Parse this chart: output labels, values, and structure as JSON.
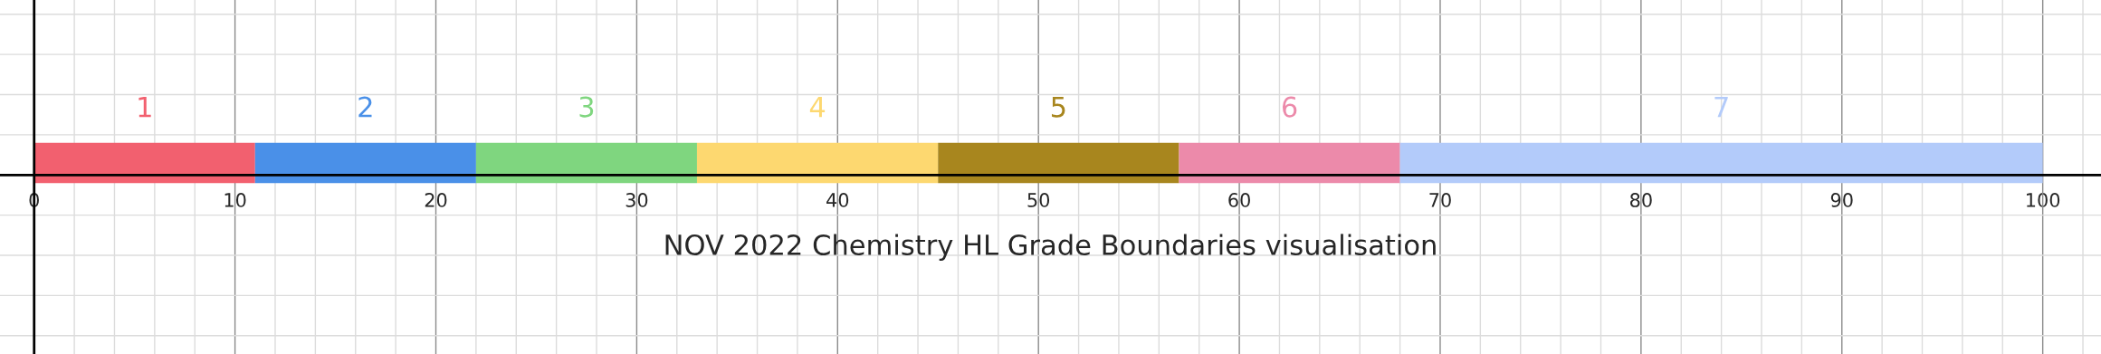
{
  "chart_data": {
    "type": "bar",
    "orientation": "horizontal",
    "stacked": true,
    "title": "NOV 2022 Chemistry HL Grade Boundaries visualisation",
    "categories": [
      null
    ],
    "series": [
      {
        "name": "1",
        "color": "#f2606f",
        "values": [
          11
        ]
      },
      {
        "name": "2",
        "color": "#4a90e8",
        "values": [
          11
        ]
      },
      {
        "name": "3",
        "color": "#7fd67f",
        "values": [
          11
        ]
      },
      {
        "name": "4",
        "color": "#fdd870",
        "values": [
          12
        ]
      },
      {
        "name": "5",
        "color": "#a8861e",
        "values": [
          12
        ]
      },
      {
        "name": "6",
        "color": "#ec8aaa",
        "values": [
          11
        ]
      },
      {
        "name": "7",
        "color": "#b3cbfa",
        "values": [
          32
        ]
      }
    ],
    "xlim": [
      -1.7,
      102.9
    ],
    "xticks": [
      0,
      10,
      20,
      30,
      40,
      50,
      60,
      70,
      80,
      90,
      100
    ],
    "grid": true,
    "tick_labels": "x"
  }
}
